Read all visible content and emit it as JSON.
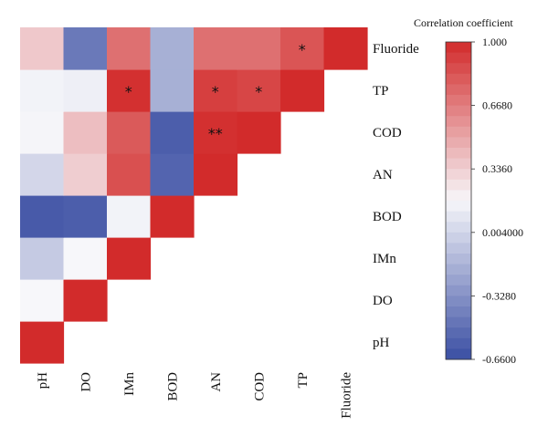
{
  "chart_data": {
    "type": "heatmap",
    "variables": [
      "pH",
      "DO",
      "IMn",
      "BOD",
      "AN",
      "COD",
      "TP",
      "Fluoride"
    ],
    "matrix": [
      [
        1.0,
        null,
        null,
        null,
        null,
        null,
        null,
        null
      ],
      [
        0.17,
        1.0,
        null,
        null,
        null,
        null,
        null,
        null
      ],
      [
        -0.05,
        0.17,
        1.0,
        null,
        null,
        null,
        null,
        null
      ],
      [
        -0.6,
        -0.58,
        0.15,
        1.0,
        null,
        null,
        null,
        null
      ],
      [
        0.01,
        0.34,
        0.85,
        -0.55,
        1.0,
        null,
        null,
        null
      ],
      [
        0.16,
        0.4,
        0.81,
        -0.58,
        0.98,
        1.0,
        null,
        null
      ],
      [
        0.15,
        0.13,
        0.98,
        -0.18,
        0.92,
        0.89,
        1.0,
        null
      ],
      [
        0.36,
        -0.45,
        0.72,
        -0.18,
        0.72,
        0.72,
        0.83,
        1.0
      ]
    ],
    "significance": [
      {
        "row": "TP",
        "col": "IMn",
        "label": "*"
      },
      {
        "row": "TP",
        "col": "AN",
        "label": "*"
      },
      {
        "row": "COD",
        "col": "AN",
        "label": "**"
      },
      {
        "row": "TP",
        "col": "COD",
        "label": "*"
      },
      {
        "row": "Fluoride",
        "col": "TP",
        "label": "*"
      }
    ],
    "colorbar": {
      "title": "Correlation coefficient",
      "ticks": [
        "1.000",
        "0.6680",
        "0.3360",
        "0.004000",
        "-0.3280",
        "-0.6600"
      ],
      "tick_values": [
        1.0,
        0.668,
        0.336,
        0.004,
        -0.328,
        -0.66
      ],
      "range": [
        -0.66,
        1.0
      ],
      "color_low": "#3a4ea3",
      "color_mid": "#f7f7fa",
      "color_high": "#d22b2b",
      "steps": 30
    }
  }
}
